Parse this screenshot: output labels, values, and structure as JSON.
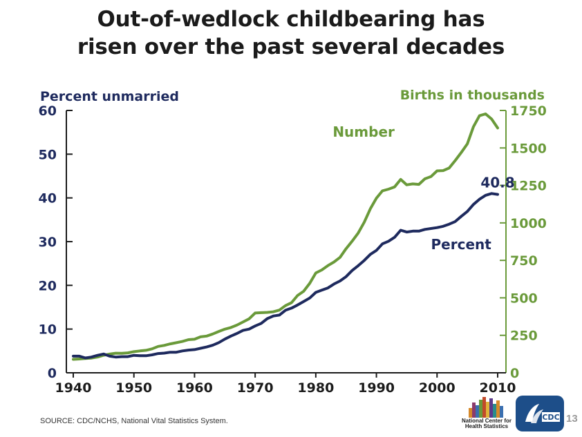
{
  "title": {
    "line1": "Out-of-wedlock childbearing has",
    "line2": "risen over the past several decades"
  },
  "chart_data": {
    "type": "line",
    "left_axis": {
      "label": "Percent unmarried",
      "range": [
        0,
        60
      ],
      "ticks": [
        "0",
        "10",
        "20",
        "30",
        "40",
        "50",
        "60"
      ],
      "color": "#1e2a5e"
    },
    "right_axis": {
      "label": "Births in thousands",
      "range": [
        0,
        1750
      ],
      "ticks": [
        "0",
        "250",
        "500",
        "750",
        "1000",
        "1250",
        "1500",
        "1750"
      ],
      "color": "#6a9a3a"
    },
    "x_axis": {
      "range": [
        1940,
        2010
      ],
      "ticks": [
        "1940",
        "1950",
        "1960",
        "1970",
        "1980",
        "1990",
        "2000",
        "2010"
      ]
    },
    "series": [
      {
        "name": "Number",
        "axis": "right",
        "color": "#6a9a3a",
        "x": [
          1940,
          1941,
          1942,
          1943,
          1944,
          1945,
          1946,
          1947,
          1948,
          1949,
          1950,
          1951,
          1952,
          1953,
          1954,
          1955,
          1956,
          1957,
          1958,
          1959,
          1960,
          1961,
          1962,
          1963,
          1964,
          1965,
          1966,
          1967,
          1968,
          1969,
          1970,
          1971,
          1972,
          1973,
          1974,
          1975,
          1976,
          1977,
          1978,
          1979,
          1980,
          1981,
          1982,
          1983,
          1984,
          1985,
          1986,
          1987,
          1988,
          1989,
          1990,
          1991,
          1992,
          1993,
          1994,
          1995,
          1996,
          1997,
          1998,
          1999,
          2000,
          2001,
          2002,
          2003,
          2004,
          2005,
          2006,
          2007,
          2008,
          2009,
          2010
        ],
        "values": [
          90,
          92,
          96,
          98,
          105,
          117,
          125,
          131,
          130,
          133,
          141,
          146,
          150,
          160,
          176,
          183,
          193,
          201,
          209,
          221,
          224,
          240,
          245,
          259,
          276,
          291,
          302,
          318,
          339,
          360,
          399,
          401,
          403,
          407,
          418,
          448,
          468,
          516,
          544,
          597,
          666,
          686,
          715,
          739,
          770,
          828,
          878,
          933,
          1005,
          1094,
          1165,
          1214,
          1225,
          1240,
          1290,
          1254,
          1260,
          1257,
          1294,
          1309,
          1347,
          1349,
          1366,
          1416,
          1470,
          1527,
          1641,
          1715,
          1727,
          1693,
          1633
        ]
      },
      {
        "name": "Percent",
        "axis": "left",
        "color": "#1e2a5e",
        "x": [
          1940,
          1941,
          1942,
          1943,
          1944,
          1945,
          1946,
          1947,
          1948,
          1949,
          1950,
          1951,
          1952,
          1953,
          1954,
          1955,
          1956,
          1957,
          1958,
          1959,
          1960,
          1961,
          1962,
          1963,
          1964,
          1965,
          1966,
          1967,
          1968,
          1969,
          1970,
          1971,
          1972,
          1973,
          1974,
          1975,
          1976,
          1977,
          1978,
          1979,
          1980,
          1981,
          1982,
          1983,
          1984,
          1985,
          1986,
          1987,
          1988,
          1989,
          1990,
          1991,
          1992,
          1993,
          1994,
          1995,
          1996,
          1997,
          1998,
          1999,
          2000,
          2001,
          2002,
          2003,
          2004,
          2005,
          2006,
          2007,
          2008,
          2009,
          2010
        ],
        "values": [
          3.8,
          3.8,
          3.4,
          3.6,
          4.0,
          4.3,
          3.8,
          3.6,
          3.7,
          3.7,
          4.0,
          3.9,
          3.9,
          4.1,
          4.4,
          4.5,
          4.7,
          4.7,
          5.0,
          5.2,
          5.3,
          5.6,
          5.9,
          6.3,
          6.9,
          7.7,
          8.4,
          9.0,
          9.7,
          10.0,
          10.7,
          11.3,
          12.4,
          13.0,
          13.2,
          14.3,
          14.8,
          15.5,
          16.3,
          17.1,
          18.4,
          18.9,
          19.4,
          20.3,
          21.0,
          22.0,
          23.4,
          24.5,
          25.7,
          27.1,
          28.0,
          29.5,
          30.1,
          31.0,
          32.6,
          32.2,
          32.4,
          32.4,
          32.8,
          33.0,
          33.2,
          33.5,
          34.0,
          34.6,
          35.8,
          36.9,
          38.5,
          39.7,
          40.6,
          41.0,
          40.8
        ]
      }
    ],
    "annotations": [
      {
        "text": "40.8",
        "x": 2010,
        "y": 40.8,
        "series": "Percent"
      }
    ]
  },
  "source": "SOURCE: CDC/NCHS, National Vital Statistics System.",
  "page_number": "13",
  "logos": {
    "nchs_line1": "National Center for",
    "nchs_line2": "Health Statistics",
    "cdc_text": "CDC"
  }
}
